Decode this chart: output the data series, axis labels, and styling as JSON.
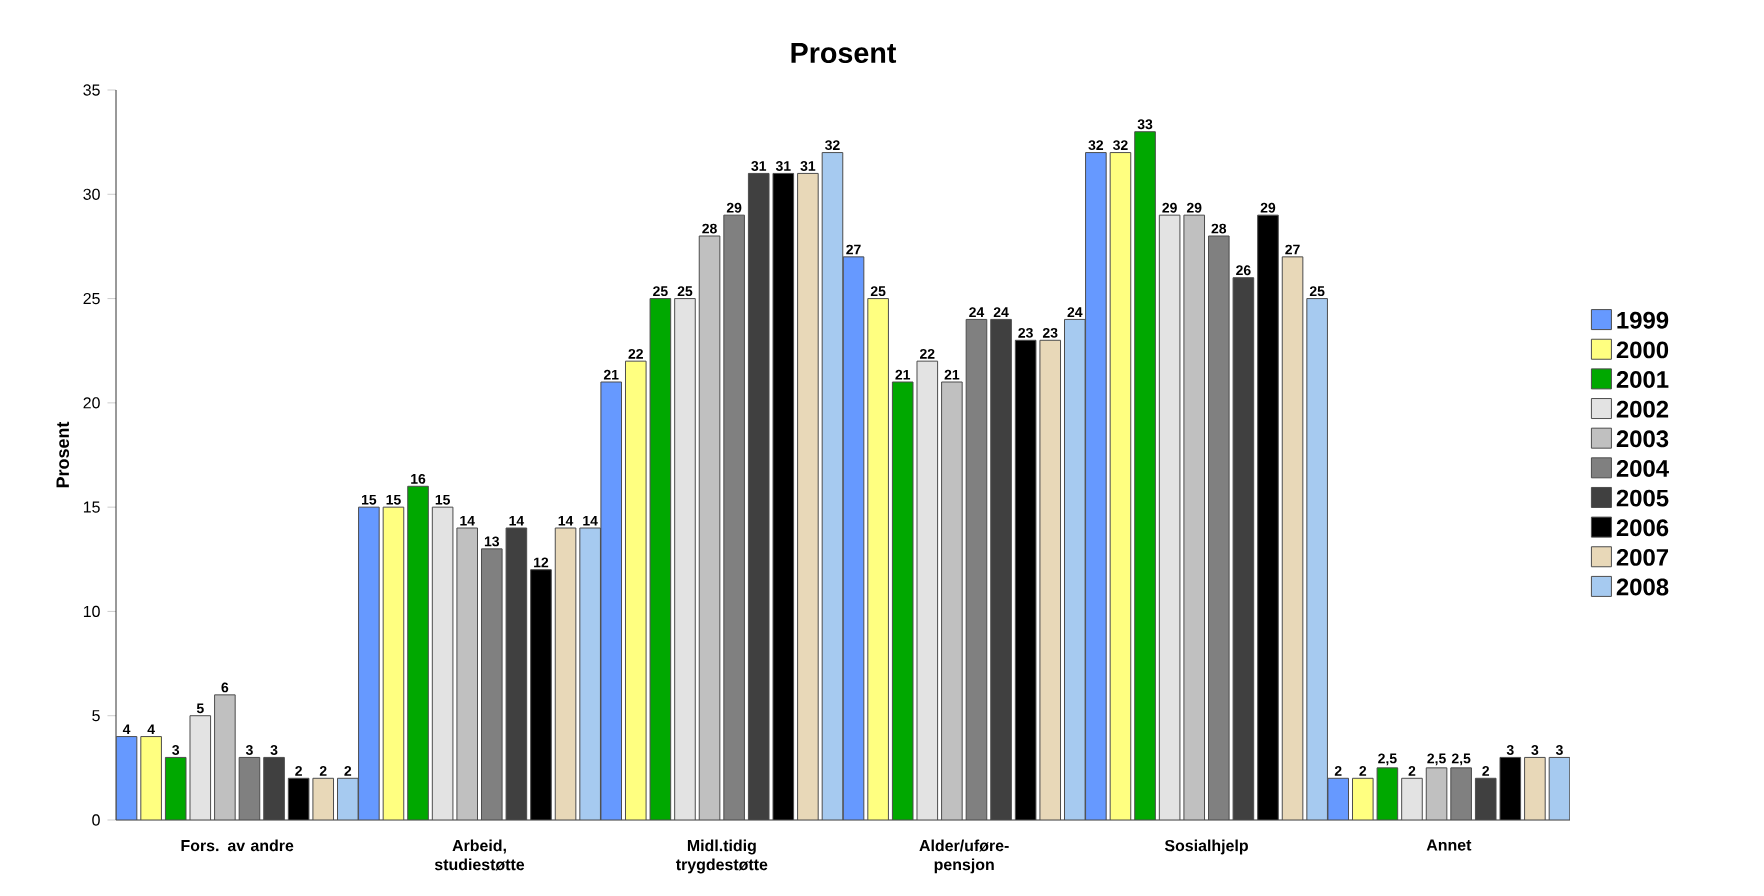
{
  "chart_data": {
    "type": "bar",
    "title": "Prosent",
    "ylabel": "Prosent",
    "categories": [
      "Fors. av andre",
      "Arbeid, studiestøtte",
      "Midl.tidig trygdestøtte",
      "Alder/uføre-pensjon",
      "Sosialhjelp",
      "Annet"
    ],
    "series": [
      {
        "name": "1999",
        "color": "#6699ff",
        "values": [
          4,
          15,
          21,
          27,
          32,
          2
        ],
        "value_labels": [
          "4",
          "15",
          "21",
          "27",
          "32",
          "2"
        ]
      },
      {
        "name": "2000",
        "color": "#ffff80",
        "values": [
          4,
          15,
          22,
          25,
          32,
          2
        ],
        "value_labels": [
          "4",
          "15",
          "22",
          "25",
          "32",
          "2"
        ]
      },
      {
        "name": "2001",
        "color": "#00a800",
        "values": [
          3,
          16,
          25,
          21,
          33,
          2.5
        ],
        "value_labels": [
          "3",
          "16",
          "25",
          "21",
          "33",
          "2,5"
        ]
      },
      {
        "name": "2002",
        "color": "#e3e3e3",
        "values": [
          5,
          15,
          25,
          22,
          29,
          2
        ],
        "value_labels": [
          "5",
          "15",
          "25",
          "22",
          "29",
          "2"
        ]
      },
      {
        "name": "2003",
        "color": "#c0c0c0",
        "values": [
          6,
          14,
          28,
          21,
          29,
          2.5
        ],
        "value_labels": [
          "6",
          "14",
          "28",
          "21",
          "29",
          "2,5"
        ]
      },
      {
        "name": "2004",
        "color": "#808080",
        "values": [
          3,
          13,
          29,
          24,
          28,
          2.5
        ],
        "value_labels": [
          "3",
          "13",
          "29",
          "24",
          "28",
          "2,5"
        ]
      },
      {
        "name": "2005",
        "color": "#404040",
        "values": [
          3,
          14,
          31,
          24,
          26,
          2
        ],
        "value_labels": [
          "3",
          "14",
          "31",
          "24",
          "26",
          "2"
        ]
      },
      {
        "name": "2006",
        "color": "#000000",
        "values": [
          2,
          12,
          31,
          23,
          29,
          3
        ],
        "value_labels": [
          "2",
          "12",
          "31",
          "23",
          "29",
          "3"
        ]
      },
      {
        "name": "2007",
        "color": "#e8d8b8",
        "values": [
          2,
          14,
          31,
          23,
          27,
          3
        ],
        "value_labels": [
          "2",
          "14",
          "31",
          "23",
          "27",
          "3"
        ]
      },
      {
        "name": "2008",
        "color": "#a6caf0",
        "values": [
          2,
          14,
          32,
          24,
          25,
          3
        ],
        "value_labels": [
          "2",
          "14",
          "32",
          "24",
          "25",
          "3"
        ]
      }
    ],
    "ylim": [
      0,
      35
    ],
    "yticks": [
      0,
      5,
      10,
      15,
      20,
      25,
      30,
      35
    ],
    "grid": false,
    "legend": "right"
  }
}
